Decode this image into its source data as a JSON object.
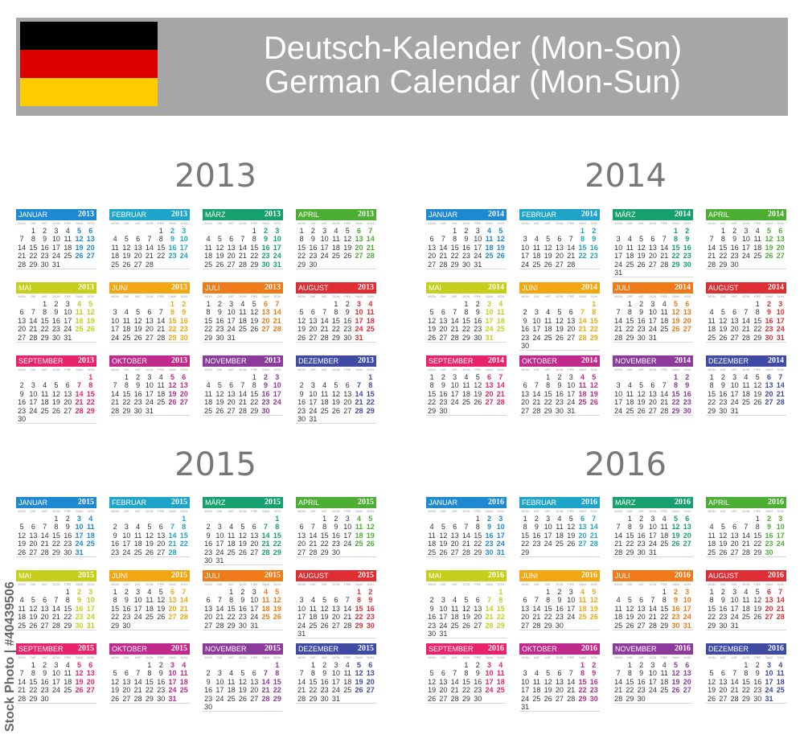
{
  "header": {
    "title_de": "Deutsch-Kalender (Mon-Son)",
    "title_en": "German Calendar (Mon-Sun)",
    "flag_colors": [
      "#000000",
      "#dd0000",
      "#ffcc00"
    ]
  },
  "weekday_labels": [
    "MON",
    "DIE",
    "MIT",
    "DON",
    "FRE",
    "SAM",
    "SON"
  ],
  "month_names": [
    "JANUAR",
    "FEBRUAR",
    "MÄRZ",
    "APRIL",
    "MAI",
    "JUNI",
    "JULI",
    "AUGUST",
    "SEPTEMBER",
    "OKTOBER",
    "NOVEMBER",
    "DEZEMBER"
  ],
  "month_colors": [
    "#1e88d0",
    "#1ea4c9",
    "#16a06e",
    "#4cae32",
    "#c3cf1a",
    "#f2a712",
    "#ee7a1a",
    "#de2e34",
    "#e8236b",
    "#c02a8b",
    "#8c3b9b",
    "#3f4aa3"
  ],
  "years": [
    "2013",
    "2014",
    "2015",
    "2016"
  ],
  "watermark": "Stock Photo | #40439506"
}
